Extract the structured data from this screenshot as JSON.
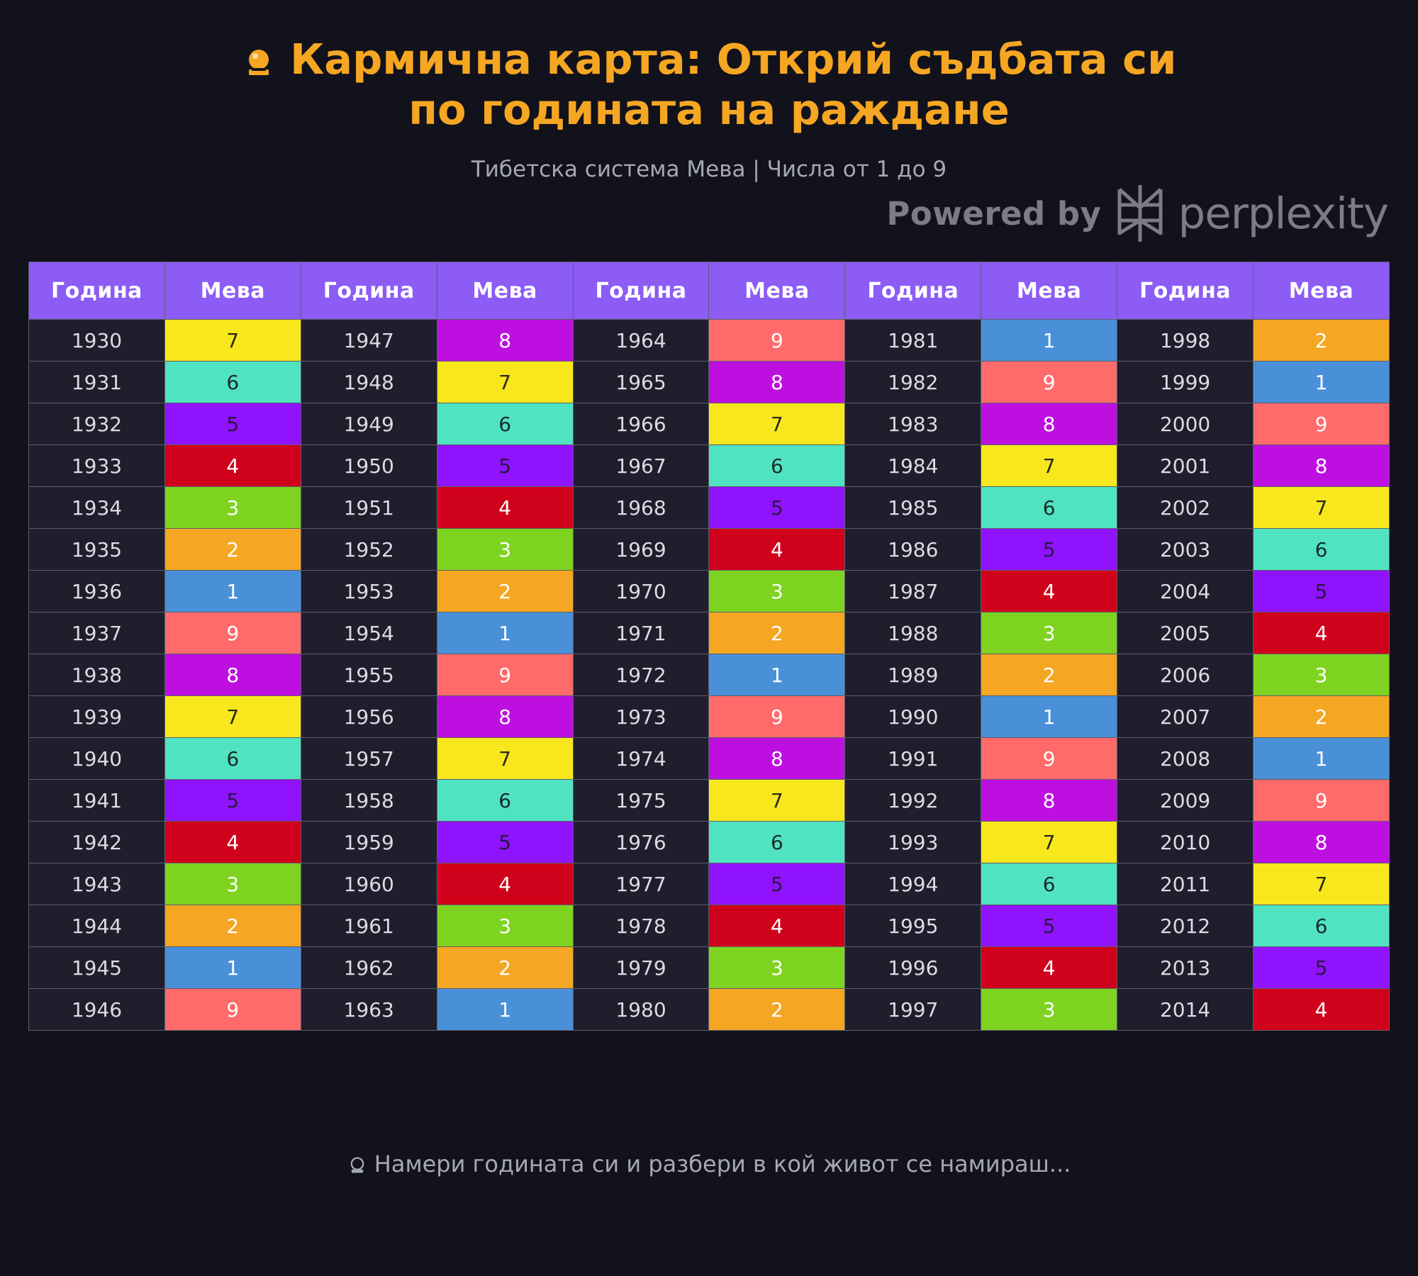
{
  "header": {
    "title_icon": "crystal-ball-icon",
    "title_line1": "Кармична карта: Открий съдбата си",
    "title_line2": "по годината на раждане",
    "subtitle": "Тибетска система Мева | Числа от 1 до 9"
  },
  "branding": {
    "powered_by": "Powered by",
    "brand": "perplexity",
    "logo_icon": "perplexity-logo-icon"
  },
  "table": {
    "year_header": "Година",
    "meva_header": "Мева",
    "columns": [
      {
        "rows": [
          {
            "year": "1930",
            "meva": 7
          },
          {
            "year": "1931",
            "meva": 6
          },
          {
            "year": "1932",
            "meva": 5
          },
          {
            "year": "1933",
            "meva": 4
          },
          {
            "year": "1934",
            "meva": 3
          },
          {
            "year": "1935",
            "meva": 2
          },
          {
            "year": "1936",
            "meva": 1
          },
          {
            "year": "1937",
            "meva": 9
          },
          {
            "year": "1938",
            "meva": 8
          },
          {
            "year": "1939",
            "meva": 7
          },
          {
            "year": "1940",
            "meva": 6
          },
          {
            "year": "1941",
            "meva": 5
          },
          {
            "year": "1942",
            "meva": 4
          },
          {
            "year": "1943",
            "meva": 3
          },
          {
            "year": "1944",
            "meva": 2
          },
          {
            "year": "1945",
            "meva": 1
          },
          {
            "year": "1946",
            "meva": 9
          }
        ]
      },
      {
        "rows": [
          {
            "year": "1947",
            "meva": 8
          },
          {
            "year": "1948",
            "meva": 7
          },
          {
            "year": "1949",
            "meva": 6
          },
          {
            "year": "1950",
            "meva": 5
          },
          {
            "year": "1951",
            "meva": 4
          },
          {
            "year": "1952",
            "meva": 3
          },
          {
            "year": "1953",
            "meva": 2
          },
          {
            "year": "1954",
            "meva": 1
          },
          {
            "year": "1955",
            "meva": 9
          },
          {
            "year": "1956",
            "meva": 8
          },
          {
            "year": "1957",
            "meva": 7
          },
          {
            "year": "1958",
            "meva": 6
          },
          {
            "year": "1959",
            "meva": 5
          },
          {
            "year": "1960",
            "meva": 4
          },
          {
            "year": "1961",
            "meva": 3
          },
          {
            "year": "1962",
            "meva": 2
          },
          {
            "year": "1963",
            "meva": 1
          }
        ]
      },
      {
        "rows": [
          {
            "year": "1964",
            "meva": 9
          },
          {
            "year": "1965",
            "meva": 8
          },
          {
            "year": "1966",
            "meva": 7
          },
          {
            "year": "1967",
            "meva": 6
          },
          {
            "year": "1968",
            "meva": 5
          },
          {
            "year": "1969",
            "meva": 4
          },
          {
            "year": "1970",
            "meva": 3
          },
          {
            "year": "1971",
            "meva": 2
          },
          {
            "year": "1972",
            "meva": 1
          },
          {
            "year": "1973",
            "meva": 9
          },
          {
            "year": "1974",
            "meva": 8
          },
          {
            "year": "1975",
            "meva": 7
          },
          {
            "year": "1976",
            "meva": 6
          },
          {
            "year": "1977",
            "meva": 5
          },
          {
            "year": "1978",
            "meva": 4
          },
          {
            "year": "1979",
            "meva": 3
          },
          {
            "year": "1980",
            "meva": 2
          }
        ]
      },
      {
        "rows": [
          {
            "year": "1981",
            "meva": 1
          },
          {
            "year": "1982",
            "meva": 9
          },
          {
            "year": "1983",
            "meva": 8
          },
          {
            "year": "1984",
            "meva": 7
          },
          {
            "year": "1985",
            "meva": 6
          },
          {
            "year": "1986",
            "meva": 5
          },
          {
            "year": "1987",
            "meva": 4
          },
          {
            "year": "1988",
            "meva": 3
          },
          {
            "year": "1989",
            "meva": 2
          },
          {
            "year": "1990",
            "meva": 1
          },
          {
            "year": "1991",
            "meva": 9
          },
          {
            "year": "1992",
            "meva": 8
          },
          {
            "year": "1993",
            "meva": 7
          },
          {
            "year": "1994",
            "meva": 6
          },
          {
            "year": "1995",
            "meva": 5
          },
          {
            "year": "1996",
            "meva": 4
          },
          {
            "year": "1997",
            "meva": 3
          }
        ]
      },
      {
        "rows": [
          {
            "year": "1998",
            "meva": 2
          },
          {
            "year": "1999",
            "meva": 1
          },
          {
            "year": "2000",
            "meva": 9
          },
          {
            "year": "2001",
            "meva": 8
          },
          {
            "year": "2002",
            "meva": 7
          },
          {
            "year": "2003",
            "meva": 6
          },
          {
            "year": "2004",
            "meva": 5
          },
          {
            "year": "2005",
            "meva": 4
          },
          {
            "year": "2006",
            "meva": 3
          },
          {
            "year": "2007",
            "meva": 2
          },
          {
            "year": "2008",
            "meva": 1
          },
          {
            "year": "2009",
            "meva": 9
          },
          {
            "year": "2010",
            "meva": 8
          },
          {
            "year": "2011",
            "meva": 7
          },
          {
            "year": "2012",
            "meva": 6
          },
          {
            "year": "2013",
            "meva": 5
          },
          {
            "year": "2014",
            "meva": 4
          }
        ]
      }
    ]
  },
  "meva_colors": {
    "1": "#4a90d9",
    "2": "#f5a623",
    "3": "#7ed321",
    "4": "#d0021b",
    "5": "#9013fe",
    "6": "#50e3c2",
    "7": "#f8e71c",
    "8": "#bd10e0",
    "9": "#ff6b6b"
  },
  "footer": {
    "icon": "crystal-ball-icon",
    "text": "Намери годината си и разбери в кой живот се намираш..."
  },
  "colors": {
    "background": "#12121c",
    "title": "#f5a623",
    "header_bg": "#8c5cf5",
    "year_cell_bg": "#1e1e2d"
  }
}
